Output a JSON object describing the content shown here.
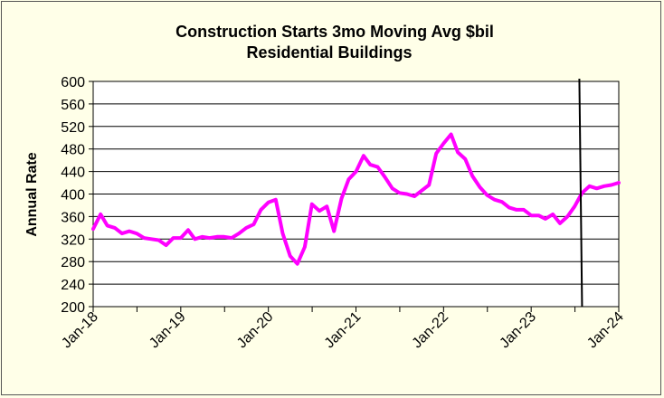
{
  "chart_data": {
    "type": "line",
    "title": "Construction Starts 3mo Moving Avg $bil",
    "subtitle": "Residential Buildings",
    "xlabel": "",
    "ylabel": "Annual Rate",
    "ylim": [
      200,
      600
    ],
    "yticks": [
      "600",
      "560",
      "520",
      "480",
      "440",
      "400",
      "360",
      "320",
      "280",
      "240",
      "200"
    ],
    "xticks": [
      "Jan-18",
      "Jan-19",
      "Jan-20",
      "Jan-21",
      "Jan-22",
      "Jan-23",
      "Jan-24"
    ],
    "grid": "horizontal",
    "line_color": "#ff00ff",
    "marker_line_color": "#000000",
    "series": [
      {
        "x": [
          "2018-01",
          "2018-02",
          "2018-03",
          "2018-04",
          "2018-05",
          "2018-06",
          "2018-07",
          "2018-08",
          "2018-09",
          "2018-10",
          "2018-11",
          "2018-12",
          "2019-01",
          "2019-02",
          "2019-03",
          "2019-04",
          "2019-05",
          "2019-06",
          "2019-07",
          "2019-08",
          "2019-09",
          "2019-10",
          "2019-11",
          "2019-12",
          "2020-01",
          "2020-02",
          "2020-03",
          "2020-04",
          "2020-05",
          "2020-06",
          "2020-07",
          "2020-08",
          "2020-09",
          "2020-10",
          "2020-11",
          "2020-12",
          "2021-01",
          "2021-02",
          "2021-03",
          "2021-04",
          "2021-05",
          "2021-06",
          "2021-07",
          "2021-08",
          "2021-09",
          "2021-10",
          "2021-11",
          "2021-12",
          "2022-01",
          "2022-02",
          "2022-03",
          "2022-04",
          "2022-05",
          "2022-06",
          "2022-07",
          "2022-08",
          "2022-09",
          "2022-10",
          "2022-11",
          "2022-12",
          "2023-01",
          "2023-02",
          "2023-03",
          "2023-04",
          "2023-05",
          "2023-06",
          "2023-07",
          "2023-08",
          "2023-09",
          "2023-10",
          "2023-11",
          "2023-12",
          "2024-01"
        ],
        "values": [
          338,
          364,
          344,
          340,
          330,
          334,
          330,
          322,
          320,
          318,
          309,
          322,
          322,
          336,
          320,
          324,
          322,
          324,
          324,
          322,
          330,
          340,
          346,
          372,
          385,
          390,
          330,
          290,
          276,
          306,
          382,
          370,
          378,
          334,
          392,
          426,
          440,
          468,
          452,
          448,
          430,
          410,
          402,
          400,
          396,
          406,
          416,
          472,
          490,
          506,
          474,
          462,
          432,
          412,
          398,
          390,
          386,
          376,
          372,
          372,
          362,
          362,
          356,
          364,
          348,
          360,
          378,
          402,
          414,
          410,
          414,
          416,
          420
        ]
      }
    ],
    "vertical_marker_x": "2023-08"
  }
}
